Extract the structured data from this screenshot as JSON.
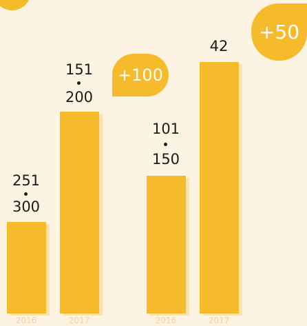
{
  "groups": [
    {
      "badge": "+100",
      "bars": [
        {
          "year": "2016",
          "top": "251",
          "bottom": "300"
        },
        {
          "year": "2017",
          "top": "151",
          "bottom": "200"
        }
      ]
    },
    {
      "badge": "+50",
      "bars": [
        {
          "year": "2016",
          "top": "101",
          "bottom": "150"
        },
        {
          "year": "2017",
          "top": "42"
        }
      ]
    }
  ]
}
